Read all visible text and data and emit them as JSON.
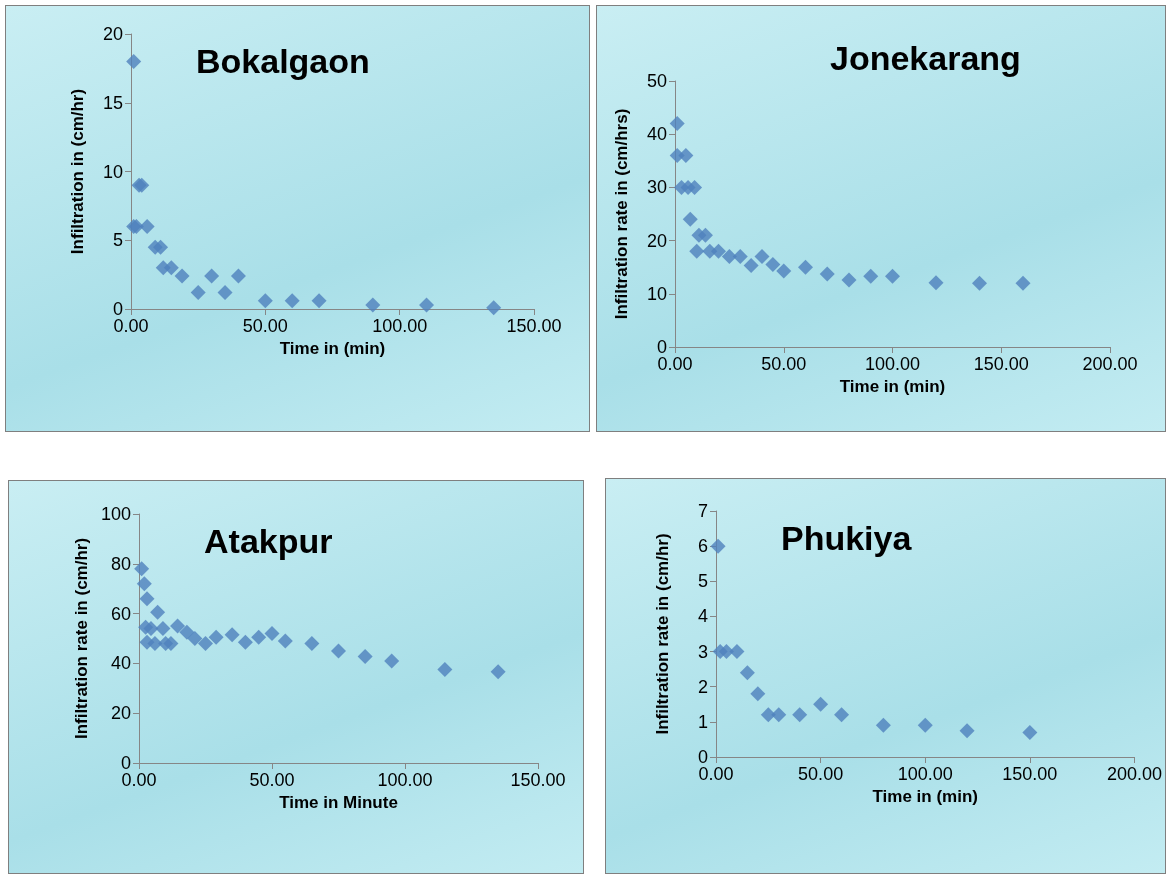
{
  "chart_data": [
    {
      "type": "scatter",
      "title": "Bokalgaon",
      "xlabel": "Time in (min)",
      "ylabel": "Infiltration in (cm/hr)",
      "marker": "diamond",
      "grid": false,
      "x": [
        1,
        3,
        4,
        1,
        2,
        6,
        9,
        11,
        12,
        15,
        19,
        25,
        30,
        35,
        40,
        50,
        60,
        70,
        90,
        110,
        135
      ],
      "series": [
        {
          "color": "#4f81bd",
          "values": [
            18,
            9,
            9,
            6,
            6,
            6,
            4.5,
            4.5,
            3,
            3,
            2.4,
            1.2,
            2.4,
            1.2,
            2.4,
            0.6,
            0.6,
            0.6,
            0.3,
            0.3,
            0.1
          ]
        }
      ],
      "xlim": [
        0,
        150
      ],
      "xticks": [
        {
          "value": 0,
          "label": "0.00"
        },
        {
          "value": 50,
          "label": "50.00"
        },
        {
          "value": 100,
          "label": "100.00"
        },
        {
          "value": 150,
          "label": "150.00"
        }
      ],
      "ylim": [
        0,
        20
      ],
      "yticks": [
        0,
        5,
        10,
        15,
        20
      ]
    },
    {
      "type": "scatter",
      "title": "Jonekarang",
      "xlabel": "Time in (min)",
      "ylabel": "Infiltration rate in (cm/hrs)",
      "marker": "diamond",
      "grid": false,
      "x": [
        1,
        1,
        5,
        3,
        6,
        9,
        7,
        11,
        14,
        10,
        16,
        20,
        25,
        30,
        35,
        40,
        45,
        50,
        60,
        70,
        80,
        90,
        100,
        120,
        140,
        160
      ],
      "series": [
        {
          "color": "#4f81bd",
          "values": [
            42,
            36,
            36,
            30,
            30,
            30,
            24,
            21,
            21,
            18,
            18,
            18,
            17,
            17,
            15.3,
            17,
            15.5,
            14.3,
            15,
            13.7,
            12.6,
            13.3,
            13.3,
            12.1,
            12,
            12
          ]
        }
      ],
      "xlim": [
        0,
        200
      ],
      "xticks": [
        {
          "value": 0,
          "label": "0.00"
        },
        {
          "value": 50,
          "label": "50.00"
        },
        {
          "value": 100,
          "label": "100.00"
        },
        {
          "value": 150,
          "label": "150.00"
        },
        {
          "value": 200,
          "label": "200.00"
        }
      ],
      "ylim": [
        0,
        50
      ],
      "yticks": [
        0,
        10,
        20,
        30,
        40,
        50
      ]
    },
    {
      "type": "scatter",
      "title": "Atakpur",
      "xlabel": "Time in Minute",
      "ylabel": "Infiltration rate in (cm/hr)",
      "marker": "diamond",
      "grid": false,
      "x": [
        1,
        2,
        3,
        7,
        2.5,
        4.5,
        9,
        3,
        6,
        10,
        12,
        14.5,
        18,
        21,
        25,
        29,
        35,
        40,
        45,
        50,
        55,
        65,
        75,
        85,
        95,
        115,
        135
      ],
      "series": [
        {
          "color": "#4f81bd",
          "values": [
            78,
            72,
            66,
            60.5,
            54.5,
            54,
            54,
            48.5,
            48,
            48,
            48,
            55,
            52.5,
            50,
            48,
            50.5,
            51.5,
            48.5,
            50.5,
            52,
            49,
            48,
            45,
            42.8,
            41,
            37.6,
            36.6
          ]
        }
      ],
      "xlim": [
        0,
        150
      ],
      "xticks": [
        {
          "value": 0,
          "label": "0.00"
        },
        {
          "value": 50,
          "label": "50.00"
        },
        {
          "value": 100,
          "label": "100.00"
        },
        {
          "value": 150,
          "label": "150.00"
        }
      ],
      "ylim": [
        0,
        100
      ],
      "yticks": [
        0,
        20,
        40,
        60,
        80,
        100
      ]
    },
    {
      "type": "scatter",
      "title": "Phukiya",
      "xlabel": "Time in (min)",
      "ylabel": "Infiltration rate in (cm/hr)",
      "marker": "diamond",
      "grid": false,
      "x": [
        1,
        2,
        5,
        10,
        15,
        20,
        25,
        30,
        40,
        50,
        60,
        80,
        100,
        120,
        150
      ],
      "series": [
        {
          "color": "#4f81bd",
          "values": [
            6,
            3,
            3,
            3,
            2.4,
            1.8,
            1.2,
            1.2,
            1.2,
            1.5,
            1.2,
            0.9,
            0.9,
            0.75,
            0.7
          ]
        }
      ],
      "xlim": [
        0,
        200
      ],
      "xticks": [
        {
          "value": 0,
          "label": "0.00"
        },
        {
          "value": 50,
          "label": "50.00"
        },
        {
          "value": 100,
          "label": "100.00"
        },
        {
          "value": 150,
          "label": "150.00"
        },
        {
          "value": 200,
          "label": "200.00"
        }
      ],
      "ylim": [
        0,
        7
      ],
      "yticks": [
        0,
        1,
        2,
        3,
        4,
        5,
        6,
        7
      ]
    }
  ]
}
